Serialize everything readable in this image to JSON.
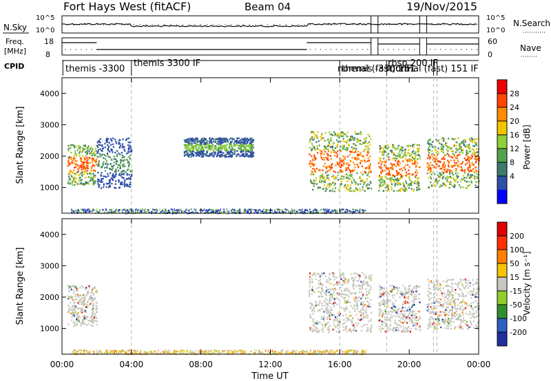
{
  "header": {
    "station": "Fort Hays West (fitACF)",
    "beam": "Beam 04",
    "date": "19/Nov/2015"
  },
  "strips": {
    "nsky_label": "N.Sky",
    "nsky_ticks": [
      "10^5",
      "10^0"
    ],
    "nsearch_label": "N.Search",
    "nsearch_ticks": [
      "10^5",
      "10^0"
    ],
    "freq_label_1": "Freq.",
    "freq_label_2": "[MHz]",
    "freq_ticks": [
      "18",
      "8"
    ],
    "nave_label": "Nave",
    "nave_ticks": [
      "60",
      "0"
    ],
    "cpid_label": "CPID",
    "cpid_names": [
      "themis -3300",
      "themis 3300 IF",
      "normal (fast) 151",
      "themis -3300 IF",
      "rbsp 200 IF",
      "normal (fast) 151 IF"
    ]
  },
  "axes": {
    "x_ticks": [
      "00:00",
      "04:00",
      "08:00",
      "12:00",
      "16:00",
      "20:00",
      "00:00"
    ],
    "x_label": "Time UT",
    "y_ticks": [
      "1000",
      "2000",
      "3000",
      "4000"
    ],
    "y_label": "Slant Range [km]"
  },
  "colorbars": {
    "power_label": "Power [dB]",
    "power_ticks": [
      "4",
      "8",
      "12",
      "16",
      "20",
      "24",
      "28"
    ],
    "power_colors": [
      "#0000ff",
      "#2f4fa8",
      "#3f7a6e",
      "#55a04a",
      "#8fcf3a",
      "#f5c400",
      "#ff8c00",
      "#ff4500",
      "#ee0000"
    ],
    "velocity_label": "Velocity [m s⁻¹]",
    "velocity_ticks": [
      "200",
      "100",
      "50",
      "15",
      "-15",
      "-50",
      "-100",
      "-200"
    ],
    "velocity_colors": [
      "#2030a0",
      "#2f5fc0",
      "#2f8f2f",
      "#8fd02f",
      "#c8c8c0",
      "#f5c400",
      "#ff8000",
      "#ff3000",
      "#e00000"
    ]
  },
  "chart_data": {
    "type": "heatmap",
    "x_range_hours": [
      0,
      24
    ],
    "y_range_km": [
      180,
      4500
    ],
    "mode_boundaries_hours": [
      4.0,
      16.0,
      18.7,
      21.4,
      21.6
    ],
    "data_gaps_hours": [
      [
        17.8,
        18.2
      ],
      [
        20.6,
        21.0
      ]
    ],
    "power_panel": {
      "quantity": "Power",
      "unit": "dB",
      "range": [
        0,
        30
      ],
      "echo_regions": [
        {
          "t_start": 0.3,
          "t_end": 2.0,
          "range_low_km": 1100,
          "range_high_km": 2400,
          "peak_db": 28
        },
        {
          "t_start": 2.0,
          "t_end": 4.0,
          "range_low_km": 1000,
          "range_high_km": 2600,
          "peak_db": 12
        },
        {
          "t_start": 7.0,
          "t_end": 11.0,
          "range_low_km": 2000,
          "range_high_km": 2600,
          "peak_db": 14
        },
        {
          "t_start": 14.2,
          "t_end": 17.8,
          "range_low_km": 900,
          "range_high_km": 2800,
          "peak_db": 28
        },
        {
          "t_start": 18.2,
          "t_end": 20.6,
          "range_low_km": 900,
          "range_high_km": 2400,
          "peak_db": 28
        },
        {
          "t_start": 21.0,
          "t_end": 24.0,
          "range_low_km": 1000,
          "range_high_km": 2600,
          "peak_db": 28
        }
      ]
    },
    "velocity_panel": {
      "quantity": "Velocity",
      "unit": "m/s",
      "range": [
        -200,
        200
      ],
      "echo_regions": [
        {
          "t_start": 0.3,
          "t_end": 2.0,
          "range_low_km": 1100,
          "range_high_km": 2400,
          "dominant_class": "ground scatter (-15..15)"
        },
        {
          "t_start": 14.2,
          "t_end": 17.8,
          "range_low_km": 900,
          "range_high_km": 2800,
          "dominant_class": "ground scatter (-15..15)"
        },
        {
          "t_start": 18.2,
          "t_end": 20.6,
          "range_low_km": 900,
          "range_high_km": 2400,
          "dominant_class": "ground scatter (-15..15)"
        },
        {
          "t_start": 21.0,
          "t_end": 24.0,
          "range_low_km": 1000,
          "range_high_km": 2600,
          "dominant_class": "ground scatter (-15..15)"
        }
      ]
    }
  }
}
